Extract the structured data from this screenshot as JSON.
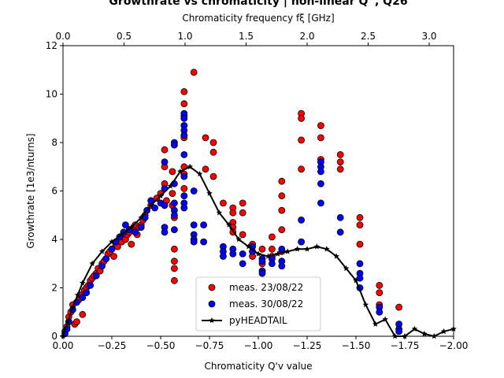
{
  "chart_data": {
    "type": "scatter",
    "title": "Growthrate vs chromaticity | non-linear Q'', Q26",
    "xlabel": "Chromaticity Q'v value",
    "ylabel": "Growthrate [1e3/nturns]",
    "top_xlabel": "Chromaticity frequency fξ [GHz]",
    "xlim": [
      0,
      -2.0
    ],
    "ylim": [
      0,
      12
    ],
    "top_xlim": [
      0,
      3.2
    ],
    "xticks": [
      0,
      -0.25,
      -0.5,
      -0.75,
      -1.0,
      -1.25,
      -1.5,
      -1.75,
      -2.0
    ],
    "xtick_labels": [
      "0.00",
      "−0.25",
      "−0.50",
      "−0.75",
      "−1.00",
      "−1.25",
      "−1.50",
      "−1.75",
      "−2.00"
    ],
    "yticks": [
      0,
      2,
      4,
      6,
      8,
      10,
      12
    ],
    "ytick_labels": [
      "0",
      "2",
      "4",
      "6",
      "8",
      "10",
      "12"
    ],
    "top_xticks": [
      0,
      0.5,
      1.0,
      1.5,
      2.0,
      2.5,
      3.0
    ],
    "top_xtick_labels": [
      "0.0",
      "0.5",
      "1.0",
      "1.5",
      "2.0",
      "2.5",
      "3.0"
    ],
    "grid": false,
    "legend_position": "lower-center",
    "series": [
      {
        "name": "meas. 23/08/22",
        "kind": "scatter",
        "color": "#ff0000",
        "points": [
          [
            -0.01,
            0.2
          ],
          [
            -0.02,
            0.4
          ],
          [
            -0.03,
            0.8
          ],
          [
            -0.04,
            1.0
          ],
          [
            -0.05,
            1.3
          ],
          [
            -0.06,
            0.5
          ],
          [
            -0.07,
            0.6
          ],
          [
            -0.08,
            1.5
          ],
          [
            -0.09,
            1.7
          ],
          [
            -0.1,
            0.9
          ],
          [
            -0.11,
            1.9
          ],
          [
            -0.12,
            2.0
          ],
          [
            -0.13,
            2.1
          ],
          [
            -0.14,
            2.3
          ],
          [
            -0.15,
            2.4
          ],
          [
            -0.16,
            2.5
          ],
          [
            -0.17,
            2.6
          ],
          [
            -0.18,
            2.8
          ],
          [
            -0.19,
            2.7
          ],
          [
            -0.2,
            3.0
          ],
          [
            -0.21,
            3.1
          ],
          [
            -0.22,
            3.2
          ],
          [
            -0.23,
            3.4
          ],
          [
            -0.24,
            3.5
          ],
          [
            -0.25,
            3.6
          ],
          [
            -0.26,
            3.3
          ],
          [
            -0.27,
            3.8
          ],
          [
            -0.28,
            3.7
          ],
          [
            -0.29,
            4.0
          ],
          [
            -0.3,
            3.9
          ],
          [
            -0.31,
            4.1
          ],
          [
            -0.32,
            4.0
          ],
          [
            -0.33,
            4.2
          ],
          [
            -0.34,
            4.3
          ],
          [
            -0.35,
            3.8
          ],
          [
            -0.36,
            4.4
          ],
          [
            -0.37,
            4.6
          ],
          [
            -0.38,
            4.2
          ],
          [
            -0.39,
            4.5
          ],
          [
            -0.4,
            4.6
          ],
          [
            -0.41,
            4.8
          ],
          [
            -0.42,
            5.0
          ],
          [
            -0.45,
            5.4
          ],
          [
            -0.48,
            5.7
          ],
          [
            -0.5,
            5.9
          ],
          [
            -0.52,
            7.7
          ],
          [
            -0.52,
            7.0
          ],
          [
            -0.52,
            6.3
          ],
          [
            -0.53,
            5.6
          ],
          [
            -0.56,
            6.8
          ],
          [
            -0.56,
            5.9
          ],
          [
            -0.56,
            5.4
          ],
          [
            -0.57,
            3.6
          ],
          [
            -0.57,
            3.1
          ],
          [
            -0.57,
            2.8
          ],
          [
            -0.57,
            2.3
          ],
          [
            -0.57,
            4.9
          ],
          [
            -0.62,
            10.1
          ],
          [
            -0.62,
            9.6
          ],
          [
            -0.62,
            9.1
          ],
          [
            -0.62,
            8.7
          ],
          [
            -0.62,
            8.3
          ],
          [
            -0.62,
            8.2
          ],
          [
            -0.62,
            7.0
          ],
          [
            -0.62,
            6.7
          ],
          [
            -0.62,
            6.1
          ],
          [
            -0.67,
            10.9
          ],
          [
            -0.73,
            8.2
          ],
          [
            -0.73,
            6.9
          ],
          [
            -0.77,
            8.0
          ],
          [
            -0.77,
            7.6
          ],
          [
            -0.77,
            6.6
          ],
          [
            -0.82,
            5.5
          ],
          [
            -0.87,
            5.3
          ],
          [
            -0.87,
            5.1
          ],
          [
            -0.87,
            4.7
          ],
          [
            -0.87,
            4.5
          ],
          [
            -0.87,
            4.3
          ],
          [
            -0.92,
            5.5
          ],
          [
            -0.92,
            5.1
          ],
          [
            -0.92,
            4.2
          ],
          [
            -0.97,
            3.8
          ],
          [
            -0.97,
            3.5
          ],
          [
            -0.97,
            3.3
          ],
          [
            -1.02,
            3.6
          ],
          [
            -1.02,
            3.0
          ],
          [
            -1.07,
            4.1
          ],
          [
            -1.07,
            3.6
          ],
          [
            -1.07,
            3.3
          ],
          [
            -1.12,
            6.4
          ],
          [
            -1.12,
            5.8
          ],
          [
            -1.12,
            5.2
          ],
          [
            -1.12,
            4.4
          ],
          [
            -1.12,
            3.5
          ],
          [
            -1.22,
            9.2
          ],
          [
            -1.22,
            9.0
          ],
          [
            -1.22,
            8.1
          ],
          [
            -1.22,
            6.9
          ],
          [
            -1.32,
            8.7
          ],
          [
            -1.32,
            8.2
          ],
          [
            -1.32,
            7.3
          ],
          [
            -1.42,
            7.5
          ],
          [
            -1.42,
            7.2
          ],
          [
            -1.42,
            6.9
          ],
          [
            -1.52,
            4.9
          ],
          [
            -1.52,
            4.6
          ],
          [
            -1.52,
            3.8
          ],
          [
            -1.62,
            2.1
          ],
          [
            -1.62,
            1.8
          ],
          [
            -1.62,
            1.3
          ],
          [
            -1.72,
            1.2
          ]
        ]
      },
      {
        "name": "meas. 30/08/22",
        "kind": "scatter",
        "color": "#0000ff",
        "points": [
          [
            -0.01,
            0.1
          ],
          [
            -0.02,
            0.3
          ],
          [
            -0.03,
            0.6
          ],
          [
            -0.05,
            1.1
          ],
          [
            -0.07,
            1.4
          ],
          [
            -0.1,
            1.6
          ],
          [
            -0.12,
            1.8
          ],
          [
            -0.14,
            2.1
          ],
          [
            -0.17,
            2.5
          ],
          [
            -0.2,
            2.9
          ],
          [
            -0.22,
            3.2
          ],
          [
            -0.25,
            3.6
          ],
          [
            -0.27,
            3.9
          ],
          [
            -0.29,
            4.1
          ],
          [
            -0.31,
            4.3
          ],
          [
            -0.32,
            4.6
          ],
          [
            -0.34,
            4.4
          ],
          [
            -0.37,
            4.3
          ],
          [
            -0.4,
            4.5
          ],
          [
            -0.42,
            4.9
          ],
          [
            -0.43,
            5.2
          ],
          [
            -0.45,
            5.6
          ],
          [
            -0.47,
            5.3
          ],
          [
            -0.5,
            5.5
          ],
          [
            -0.52,
            7.2
          ],
          [
            -0.52,
            6.1
          ],
          [
            -0.52,
            5.4
          ],
          [
            -0.52,
            4.5
          ],
          [
            -0.52,
            4.3
          ],
          [
            -0.57,
            8.0
          ],
          [
            -0.57,
            7.9
          ],
          [
            -0.57,
            6.3
          ],
          [
            -0.57,
            5.5
          ],
          [
            -0.57,
            5.2
          ],
          [
            -0.57,
            5.0
          ],
          [
            -0.57,
            4.4
          ],
          [
            -0.62,
            9.2
          ],
          [
            -0.62,
            9.0
          ],
          [
            -0.62,
            8.7
          ],
          [
            -0.62,
            8.5
          ],
          [
            -0.62,
            8.3
          ],
          [
            -0.62,
            7.5
          ],
          [
            -0.62,
            6.6
          ],
          [
            -0.62,
            5.8
          ],
          [
            -0.62,
            5.5
          ],
          [
            -0.62,
            5.3
          ],
          [
            -0.67,
            6.0
          ],
          [
            -0.67,
            4.6
          ],
          [
            -0.67,
            4.2
          ],
          [
            -0.67,
            4.0
          ],
          [
            -0.67,
            3.9
          ],
          [
            -0.72,
            4.6
          ],
          [
            -0.72,
            3.9
          ],
          [
            -0.82,
            3.7
          ],
          [
            -0.82,
            3.5
          ],
          [
            -0.82,
            3.3
          ],
          [
            -0.87,
            3.6
          ],
          [
            -0.87,
            3.4
          ],
          [
            -0.92,
            3.4
          ],
          [
            -0.92,
            3.0
          ],
          [
            -0.97,
            3.7
          ],
          [
            -0.97,
            3.5
          ],
          [
            -1.02,
            3.2
          ],
          [
            -1.02,
            3.1
          ],
          [
            -1.02,
            2.7
          ],
          [
            -1.02,
            2.6
          ],
          [
            -1.07,
            3.2
          ],
          [
            -1.07,
            3.0
          ],
          [
            -1.12,
            3.6
          ],
          [
            -1.12,
            3.1
          ],
          [
            -1.12,
            2.9
          ],
          [
            -1.22,
            4.8
          ],
          [
            -1.22,
            3.9
          ],
          [
            -1.32,
            7.2
          ],
          [
            -1.32,
            7.0
          ],
          [
            -1.32,
            6.8
          ],
          [
            -1.32,
            6.3
          ],
          [
            -1.32,
            5.5
          ],
          [
            -1.42,
            4.9
          ],
          [
            -1.42,
            4.3
          ],
          [
            -1.52,
            3.0
          ],
          [
            -1.52,
            2.6
          ],
          [
            -1.52,
            2.4
          ],
          [
            -1.52,
            2.0
          ],
          [
            -1.62,
            1.2
          ],
          [
            -1.62,
            1.0
          ],
          [
            -1.72,
            0.5
          ],
          [
            -1.72,
            0.3
          ],
          [
            -1.72,
            0.2
          ]
        ]
      },
      {
        "name": "pyHEADTAIL",
        "kind": "line",
        "color": "#000000",
        "points": [
          [
            0.0,
            0.0
          ],
          [
            -0.025,
            0.6
          ],
          [
            -0.05,
            1.2
          ],
          [
            -0.075,
            1.7
          ],
          [
            -0.1,
            2.2
          ],
          [
            -0.15,
            3.0
          ],
          [
            -0.2,
            3.5
          ],
          [
            -0.25,
            3.9
          ],
          [
            -0.3,
            4.2
          ],
          [
            -0.35,
            4.5
          ],
          [
            -0.4,
            4.9
          ],
          [
            -0.45,
            5.4
          ],
          [
            -0.5,
            5.8
          ],
          [
            -0.55,
            6.2
          ],
          [
            -0.6,
            6.8
          ],
          [
            -0.65,
            7.0
          ],
          [
            -0.7,
            6.7
          ],
          [
            -0.75,
            5.9
          ],
          [
            -0.8,
            5.1
          ],
          [
            -0.85,
            4.6
          ],
          [
            -0.9,
            4.0
          ],
          [
            -0.95,
            3.7
          ],
          [
            -1.0,
            3.4
          ],
          [
            -1.05,
            3.3
          ],
          [
            -1.1,
            3.4
          ],
          [
            -1.15,
            3.5
          ],
          [
            -1.2,
            3.6
          ],
          [
            -1.25,
            3.6
          ],
          [
            -1.3,
            3.7
          ],
          [
            -1.35,
            3.6
          ],
          [
            -1.4,
            3.3
          ],
          [
            -1.45,
            2.8
          ],
          [
            -1.5,
            2.3
          ],
          [
            -1.55,
            1.3
          ],
          [
            -1.6,
            0.5
          ],
          [
            -1.65,
            0.7
          ],
          [
            -1.7,
            0.0
          ],
          [
            -1.75,
            0.0
          ],
          [
            -1.8,
            0.3
          ],
          [
            -1.85,
            0.1
          ],
          [
            -1.9,
            0.0
          ],
          [
            -1.95,
            0.2
          ],
          [
            -2.0,
            0.3
          ]
        ]
      }
    ]
  }
}
